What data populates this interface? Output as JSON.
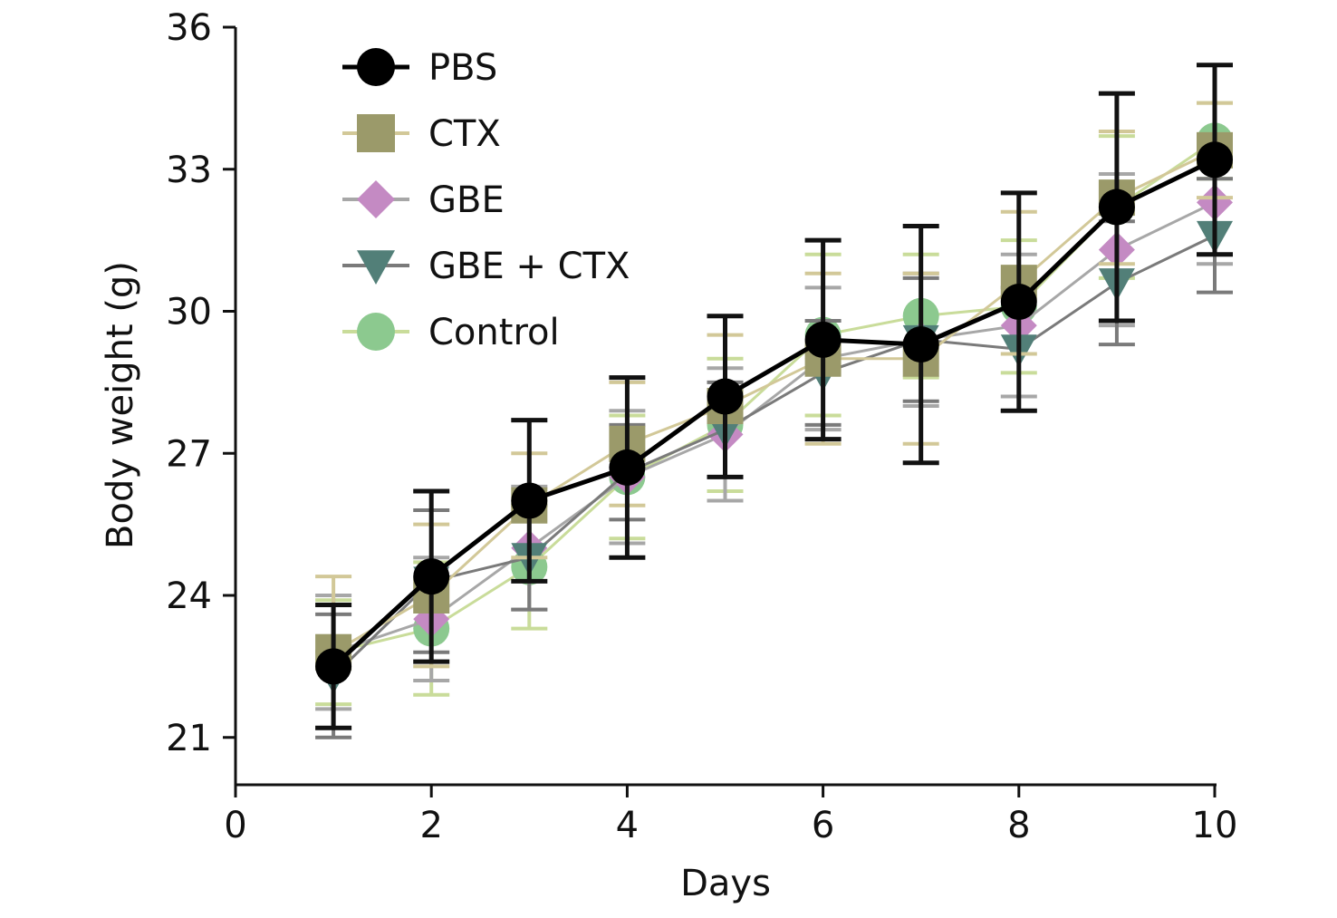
{
  "chart_data": {
    "type": "line",
    "xlabel": "Days",
    "ylabel": "Body weight (g)",
    "xlim": [
      0,
      10
    ],
    "ylim": [
      20,
      36
    ],
    "x_ticks": [
      "0",
      "2",
      "4",
      "6",
      "8",
      "10"
    ],
    "y_ticks": [
      "21",
      "24",
      "27",
      "30",
      "33",
      "36"
    ],
    "grid": false,
    "legend_position": "top-left",
    "x": [
      1,
      2,
      3,
      4,
      5,
      6,
      7,
      8,
      9,
      10
    ],
    "series": [
      {
        "name": "Control",
        "marker": "circle",
        "color": "#8cc98f",
        "line_color": "#c9dc9a",
        "values": [
          22.8,
          23.3,
          24.6,
          26.5,
          27.6,
          29.5,
          29.9,
          30.1,
          32.2,
          33.6
        ],
        "errors": [
          1.1,
          1.4,
          1.3,
          1.3,
          1.4,
          1.7,
          1.3,
          1.4,
          1.5,
          0.8
        ]
      },
      {
        "name": "GBE",
        "marker": "diamond",
        "color": "#c48ac3",
        "line_color": "#a7a7a7",
        "values": [
          22.8,
          23.5,
          25.0,
          26.5,
          27.4,
          29.0,
          29.4,
          29.7,
          31.3,
          32.3
        ],
        "errors": [
          1.2,
          1.3,
          1.3,
          1.4,
          1.4,
          1.5,
          1.4,
          1.5,
          1.6,
          1.3
        ]
      },
      {
        "name": "GBE + CTX",
        "marker": "triangle-down",
        "color": "#527f78",
        "line_color": "#7a7a7a",
        "values": [
          22.3,
          24.3,
          24.8,
          26.6,
          27.5,
          28.7,
          29.4,
          29.2,
          30.6,
          31.6
        ],
        "errors": [
          1.3,
          1.5,
          1.1,
          1.0,
          1.0,
          1.1,
          1.3,
          1.3,
          1.3,
          1.2
        ]
      },
      {
        "name": "CTX",
        "marker": "square",
        "color": "#9b9a6a",
        "line_color": "#d2c898",
        "values": [
          22.8,
          24.0,
          25.9,
          27.2,
          28.0,
          29.0,
          29.0,
          30.6,
          32.4,
          33.4
        ],
        "errors": [
          1.6,
          1.5,
          1.1,
          1.3,
          1.5,
          1.8,
          1.8,
          1.5,
          1.4,
          1.0
        ]
      },
      {
        "name": "PBS",
        "marker": "circle",
        "color": "#000000",
        "line_color": "#000000",
        "values": [
          22.5,
          24.4,
          26.0,
          26.7,
          28.2,
          29.4,
          29.3,
          30.2,
          32.2,
          33.2
        ],
        "errors": [
          1.3,
          1.8,
          1.7,
          1.9,
          1.7,
          2.1,
          2.5,
          2.3,
          2.4,
          2.0
        ]
      }
    ],
    "legend_entries": [
      "PBS",
      "CTX",
      "GBE",
      "GBE + CTX",
      "Control"
    ]
  }
}
